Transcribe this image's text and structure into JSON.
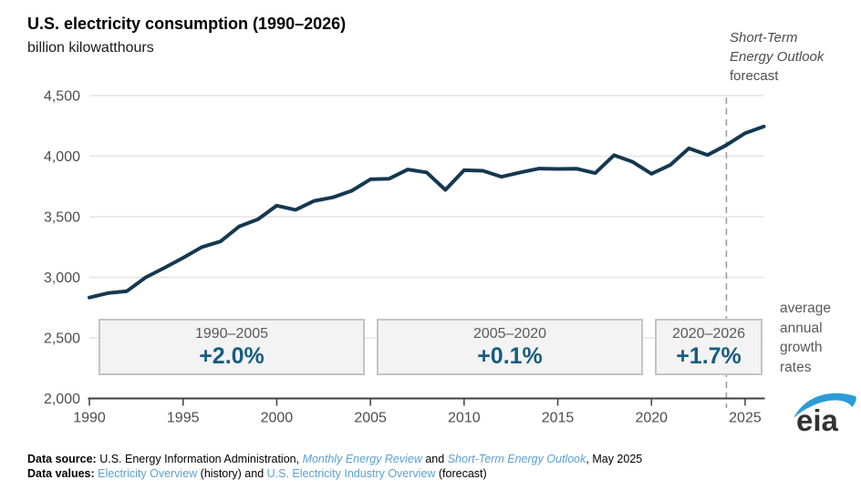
{
  "header": {
    "title": "U.S. electricity consumption (1990–2026)",
    "subtitle": "billion kilowatthours"
  },
  "annotations": {
    "steo_line1": "Short-Term",
    "steo_line2": "Energy Outlook",
    "steo_line3": "forecast",
    "avg_note": "average annual growth rates"
  },
  "growth_boxes": [
    {
      "range": "1990–2005",
      "rate": "+2.0%"
    },
    {
      "range": "2005–2020",
      "rate": "+0.1%"
    },
    {
      "range": "2020–2026",
      "rate": "+1.7%"
    }
  ],
  "chart_data": {
    "type": "line",
    "title": "U.S. electricity consumption (1990–2026)",
    "ylabel": "billion kilowatthours",
    "x": [
      1990,
      1991,
      1992,
      1993,
      1994,
      1995,
      1996,
      1997,
      1998,
      1999,
      2000,
      2001,
      2002,
      2003,
      2004,
      2005,
      2006,
      2007,
      2008,
      2009,
      2010,
      2011,
      2012,
      2013,
      2014,
      2015,
      2016,
      2017,
      2018,
      2019,
      2020,
      2021,
      2022,
      2023,
      2024,
      2025,
      2026
    ],
    "series": [
      {
        "name": "U.S. electricity consumption",
        "values": [
          2833,
          2870,
          2886,
          2999,
          3078,
          3161,
          3250,
          3296,
          3420,
          3480,
          3592,
          3557,
          3631,
          3660,
          3714,
          3809,
          3814,
          3890,
          3866,
          3722,
          3884,
          3880,
          3830,
          3866,
          3898,
          3895,
          3897,
          3860,
          4008,
          3953,
          3855,
          3927,
          4065,
          4010,
          4092,
          4190,
          4245
        ]
      }
    ],
    "ylim": [
      2000,
      4500
    ],
    "yticks": [
      2000,
      2500,
      3000,
      3500,
      4000,
      4500
    ],
    "ytick_labels": [
      "2,000",
      "2,500",
      "3,000",
      "3,500",
      "4,000",
      "4,500"
    ],
    "xticks": [
      1990,
      1995,
      2000,
      2005,
      2010,
      2015,
      2020,
      2025
    ],
    "forecast_boundary_year": 2024,
    "grid": "horizontal",
    "legend": "none"
  },
  "colors": {
    "line": "#15384f",
    "grid": "#e4e4e4",
    "axis": "#3f3f3f",
    "tick_text": "#4d4d4d",
    "dashed": "#999999",
    "accent_text": "#175c80",
    "link": "#5ba0d4",
    "logo_blue": "#2b9cd8",
    "logo_text": "#333333",
    "box_fill": "#f3f3f3",
    "box_border": "#c4c4c4"
  },
  "logo": {
    "text": "eia"
  },
  "footer": {
    "source_label": "Data source:",
    "source_pre": "U.S. Energy Information Administration,",
    "source_link1": "Monthly Energy Review",
    "source_and": "and",
    "source_link2": "Short-Term Energy Outlook",
    "source_post": ", May 2025",
    "values_label": "Data values:",
    "values_link1": "Electricity Overview",
    "values_mid": "(history) and",
    "values_link2": "U.S. Electricity Industry Overview",
    "values_post": "(forecast)"
  }
}
